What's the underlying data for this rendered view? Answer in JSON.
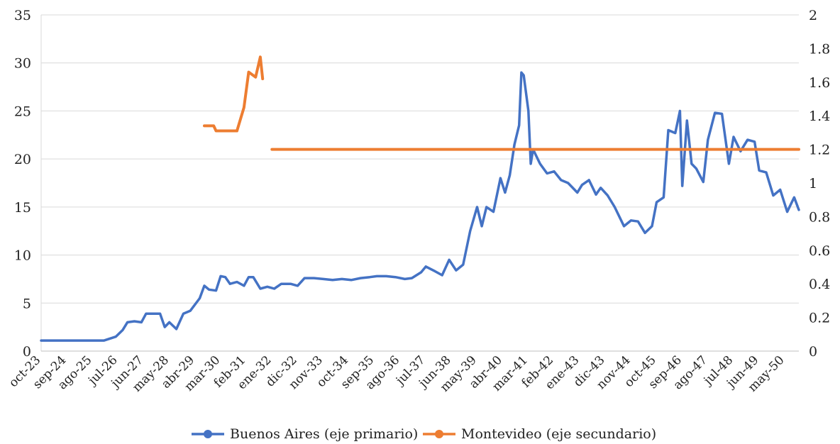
{
  "chart_data": {
    "type": "line",
    "title": "",
    "xlabel": "",
    "ylabel": "",
    "y2label": "",
    "grid": "horizontal",
    "legend_position": "bottom",
    "x_range": [
      "oct-23",
      "nov-50"
    ],
    "ylim": [
      0,
      35
    ],
    "yticks": [
      "0",
      "5",
      "10",
      "15",
      "20",
      "25",
      "30",
      "35"
    ],
    "y2lim": [
      0,
      2
    ],
    "y2ticks": [
      "0",
      "0.2",
      "0.4",
      "0.6",
      "0.8",
      "1",
      "1.2",
      "1.4",
      "1.6",
      "1.8",
      "2"
    ],
    "xticks": [
      "oct-23",
      "sep-24",
      "ago-25",
      "jul-26",
      "jun-27",
      "may-28",
      "abr-29",
      "mar-30",
      "feb-31",
      "ene-32",
      "dic-32",
      "nov-33",
      "oct-34",
      "sep-35",
      "ago-36",
      "jul-37",
      "jun-38",
      "may-39",
      "abr-40",
      "mar-41",
      "feb-42",
      "ene-43",
      "dic-43",
      "nov-44",
      "oct-45",
      "sep-46",
      "ago-47",
      "jul-48",
      "jun-49",
      "may-50"
    ],
    "series": [
      {
        "name": "Buenos Aires (eje primario)",
        "axis": "primary",
        "color": "#4472C4",
        "points": [
          [
            "1923-10",
            1.1
          ],
          [
            "1924-06",
            1.1
          ],
          [
            "1925-03",
            1.1
          ],
          [
            "1926-01",
            1.1
          ],
          [
            "1926-06",
            1.5
          ],
          [
            "1926-09",
            2.2
          ],
          [
            "1926-11",
            3.0
          ],
          [
            "1927-02",
            3.1
          ],
          [
            "1927-05",
            3.0
          ],
          [
            "1927-07",
            3.9
          ],
          [
            "1927-11",
            3.9
          ],
          [
            "1928-01",
            3.9
          ],
          [
            "1928-03",
            2.5
          ],
          [
            "1928-05",
            3.0
          ],
          [
            "1928-08",
            2.3
          ],
          [
            "1928-11",
            3.9
          ],
          [
            "1929-02",
            4.2
          ],
          [
            "1929-06",
            5.5
          ],
          [
            "1929-08",
            6.8
          ],
          [
            "1929-10",
            6.4
          ],
          [
            "1930-01",
            6.3
          ],
          [
            "1930-03",
            7.8
          ],
          [
            "1930-05",
            7.7
          ],
          [
            "1930-07",
            7.0
          ],
          [
            "1930-10",
            7.2
          ],
          [
            "1931-01",
            6.8
          ],
          [
            "1931-03",
            7.7
          ],
          [
            "1931-05",
            7.7
          ],
          [
            "1931-08",
            6.5
          ],
          [
            "1931-11",
            6.7
          ],
          [
            "1932-02",
            6.5
          ],
          [
            "1932-05",
            7.0
          ],
          [
            "1932-09",
            7.0
          ],
          [
            "1932-12",
            6.8
          ],
          [
            "1933-03",
            7.6
          ],
          [
            "1933-07",
            7.6
          ],
          [
            "1933-11",
            7.5
          ],
          [
            "1934-03",
            7.4
          ],
          [
            "1934-07",
            7.5
          ],
          [
            "1934-11",
            7.4
          ],
          [
            "1935-03",
            7.6
          ],
          [
            "1935-07",
            7.7
          ],
          [
            "1935-10",
            7.8
          ],
          [
            "1936-02",
            7.8
          ],
          [
            "1936-06",
            7.7
          ],
          [
            "1936-10",
            7.5
          ],
          [
            "1937-01",
            7.6
          ],
          [
            "1937-05",
            8.2
          ],
          [
            "1937-07",
            8.8
          ],
          [
            "1937-11",
            8.3
          ],
          [
            "1938-02",
            7.9
          ],
          [
            "1938-05",
            9.5
          ],
          [
            "1938-08",
            8.4
          ],
          [
            "1938-11",
            9.0
          ],
          [
            "1939-02",
            12.5
          ],
          [
            "1939-05",
            15.0
          ],
          [
            "1939-07",
            13.0
          ],
          [
            "1939-09",
            15.0
          ],
          [
            "1939-12",
            14.5
          ],
          [
            "1940-03",
            18.0
          ],
          [
            "1940-05",
            16.5
          ],
          [
            "1940-07",
            18.3
          ],
          [
            "1940-09",
            21.5
          ],
          [
            "1940-11",
            23.5
          ],
          [
            "1940-12",
            29.0
          ],
          [
            "1941-01",
            28.7
          ],
          [
            "1941-03",
            25.0
          ],
          [
            "1941-04",
            19.5
          ],
          [
            "1941-05",
            21.0
          ],
          [
            "1941-08",
            19.5
          ],
          [
            "1941-11",
            18.5
          ],
          [
            "1942-02",
            18.7
          ],
          [
            "1942-05",
            17.8
          ],
          [
            "1942-08",
            17.5
          ],
          [
            "1942-12",
            16.5
          ],
          [
            "1943-02",
            17.3
          ],
          [
            "1943-05",
            17.8
          ],
          [
            "1943-08",
            16.3
          ],
          [
            "1943-10",
            17.0
          ],
          [
            "1944-01",
            16.2
          ],
          [
            "1944-04",
            15.0
          ],
          [
            "1944-08",
            13.0
          ],
          [
            "1944-11",
            13.6
          ],
          [
            "1945-02",
            13.5
          ],
          [
            "1945-05",
            12.3
          ],
          [
            "1945-08",
            13.0
          ],
          [
            "1945-10",
            15.5
          ],
          [
            "1946-01",
            16.0
          ],
          [
            "1946-03",
            23.0
          ],
          [
            "1946-06",
            22.7
          ],
          [
            "1946-08",
            25.0
          ],
          [
            "1946-09",
            17.2
          ],
          [
            "1946-11",
            24.0
          ],
          [
            "1947-01",
            19.5
          ],
          [
            "1947-03",
            19.0
          ],
          [
            "1947-06",
            17.6
          ],
          [
            "1947-08",
            22.0
          ],
          [
            "1947-11",
            24.8
          ],
          [
            "1948-02",
            24.7
          ],
          [
            "1948-05",
            19.5
          ],
          [
            "1948-07",
            22.3
          ],
          [
            "1948-10",
            20.8
          ],
          [
            "1949-01",
            22.0
          ],
          [
            "1949-04",
            21.8
          ],
          [
            "1949-06",
            18.8
          ],
          [
            "1949-09",
            18.6
          ],
          [
            "1949-12",
            16.2
          ],
          [
            "1950-03",
            16.8
          ],
          [
            "1950-06",
            14.5
          ],
          [
            "1950-09",
            16.0
          ],
          [
            "1950-11",
            14.7
          ]
        ]
      },
      {
        "name": "Montevideo (eje secundario)",
        "axis": "secondary",
        "color": "#ED7D31",
        "segments": [
          [
            [
              "1929-08",
              1.34
            ],
            [
              "1929-12",
              1.34
            ],
            [
              "1930-01",
              1.31
            ],
            [
              "1930-06",
              1.31
            ],
            [
              "1930-10",
              1.31
            ],
            [
              "1931-01",
              1.45
            ],
            [
              "1931-03",
              1.66
            ],
            [
              "1931-06",
              1.63
            ],
            [
              "1931-08",
              1.75
            ],
            [
              "1931-09",
              1.62
            ]
          ],
          [
            [
              "1932-01",
              1.2
            ],
            [
              "1950-11",
              1.2
            ]
          ]
        ]
      }
    ]
  }
}
